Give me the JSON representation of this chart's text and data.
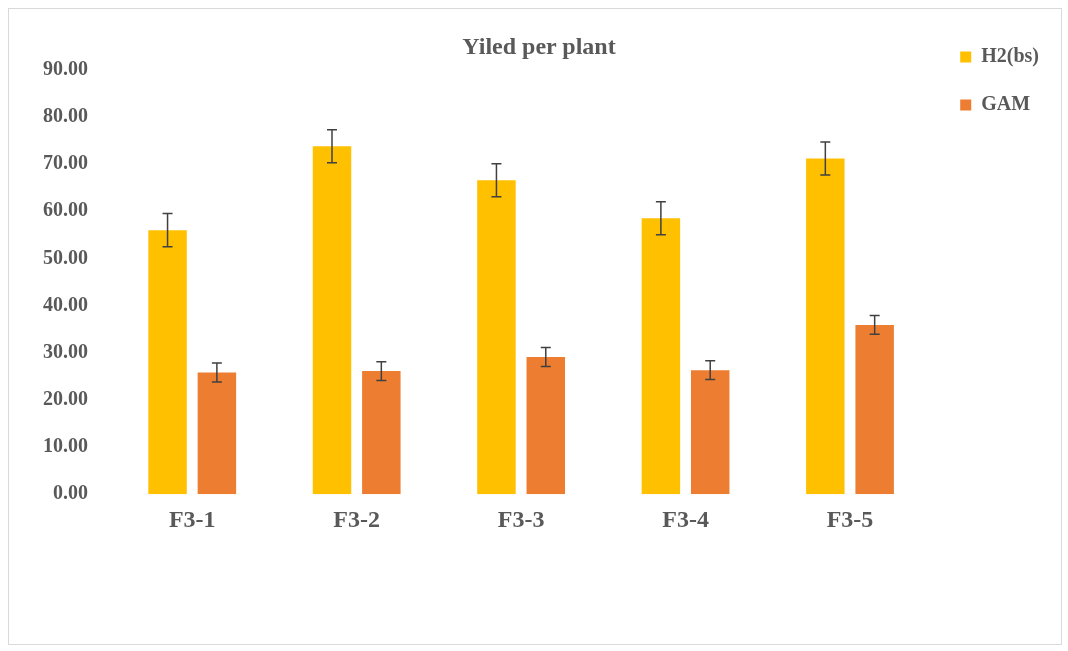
{
  "chart_data": {
    "type": "bar",
    "title": "Yiled per plant",
    "categories": [
      "F3-1",
      "F3-2",
      "F3-3",
      "F3-4",
      "F3-5"
    ],
    "series": [
      {
        "name": "H2(bs)",
        "color": "#ffc000",
        "values": [
          56.0,
          73.8,
          66.6,
          58.5,
          71.2
        ],
        "errors": [
          3.5,
          3.5,
          3.5,
          3.5,
          3.5
        ]
      },
      {
        "name": "GAM",
        "color": "#ed7d31",
        "values": [
          25.8,
          26.1,
          29.1,
          26.3,
          35.9
        ],
        "errors": [
          2,
          2,
          2,
          2,
          2
        ]
      }
    ],
    "ylim": [
      0,
      90
    ],
    "yticks": [
      {
        "value": 0,
        "label": "0.00"
      },
      {
        "value": 10,
        "label": "10.00"
      },
      {
        "value": 20,
        "label": "20.00"
      },
      {
        "value": 30,
        "label": "30.00"
      },
      {
        "value": 40,
        "label": "40.00"
      },
      {
        "value": 50,
        "label": "50.00"
      },
      {
        "value": 60,
        "label": "60.00"
      },
      {
        "value": 70,
        "label": "70.00"
      },
      {
        "value": 80,
        "label": "80.00"
      },
      {
        "value": 90,
        "label": "90.00"
      }
    ],
    "grid": false,
    "legend": "top right"
  }
}
